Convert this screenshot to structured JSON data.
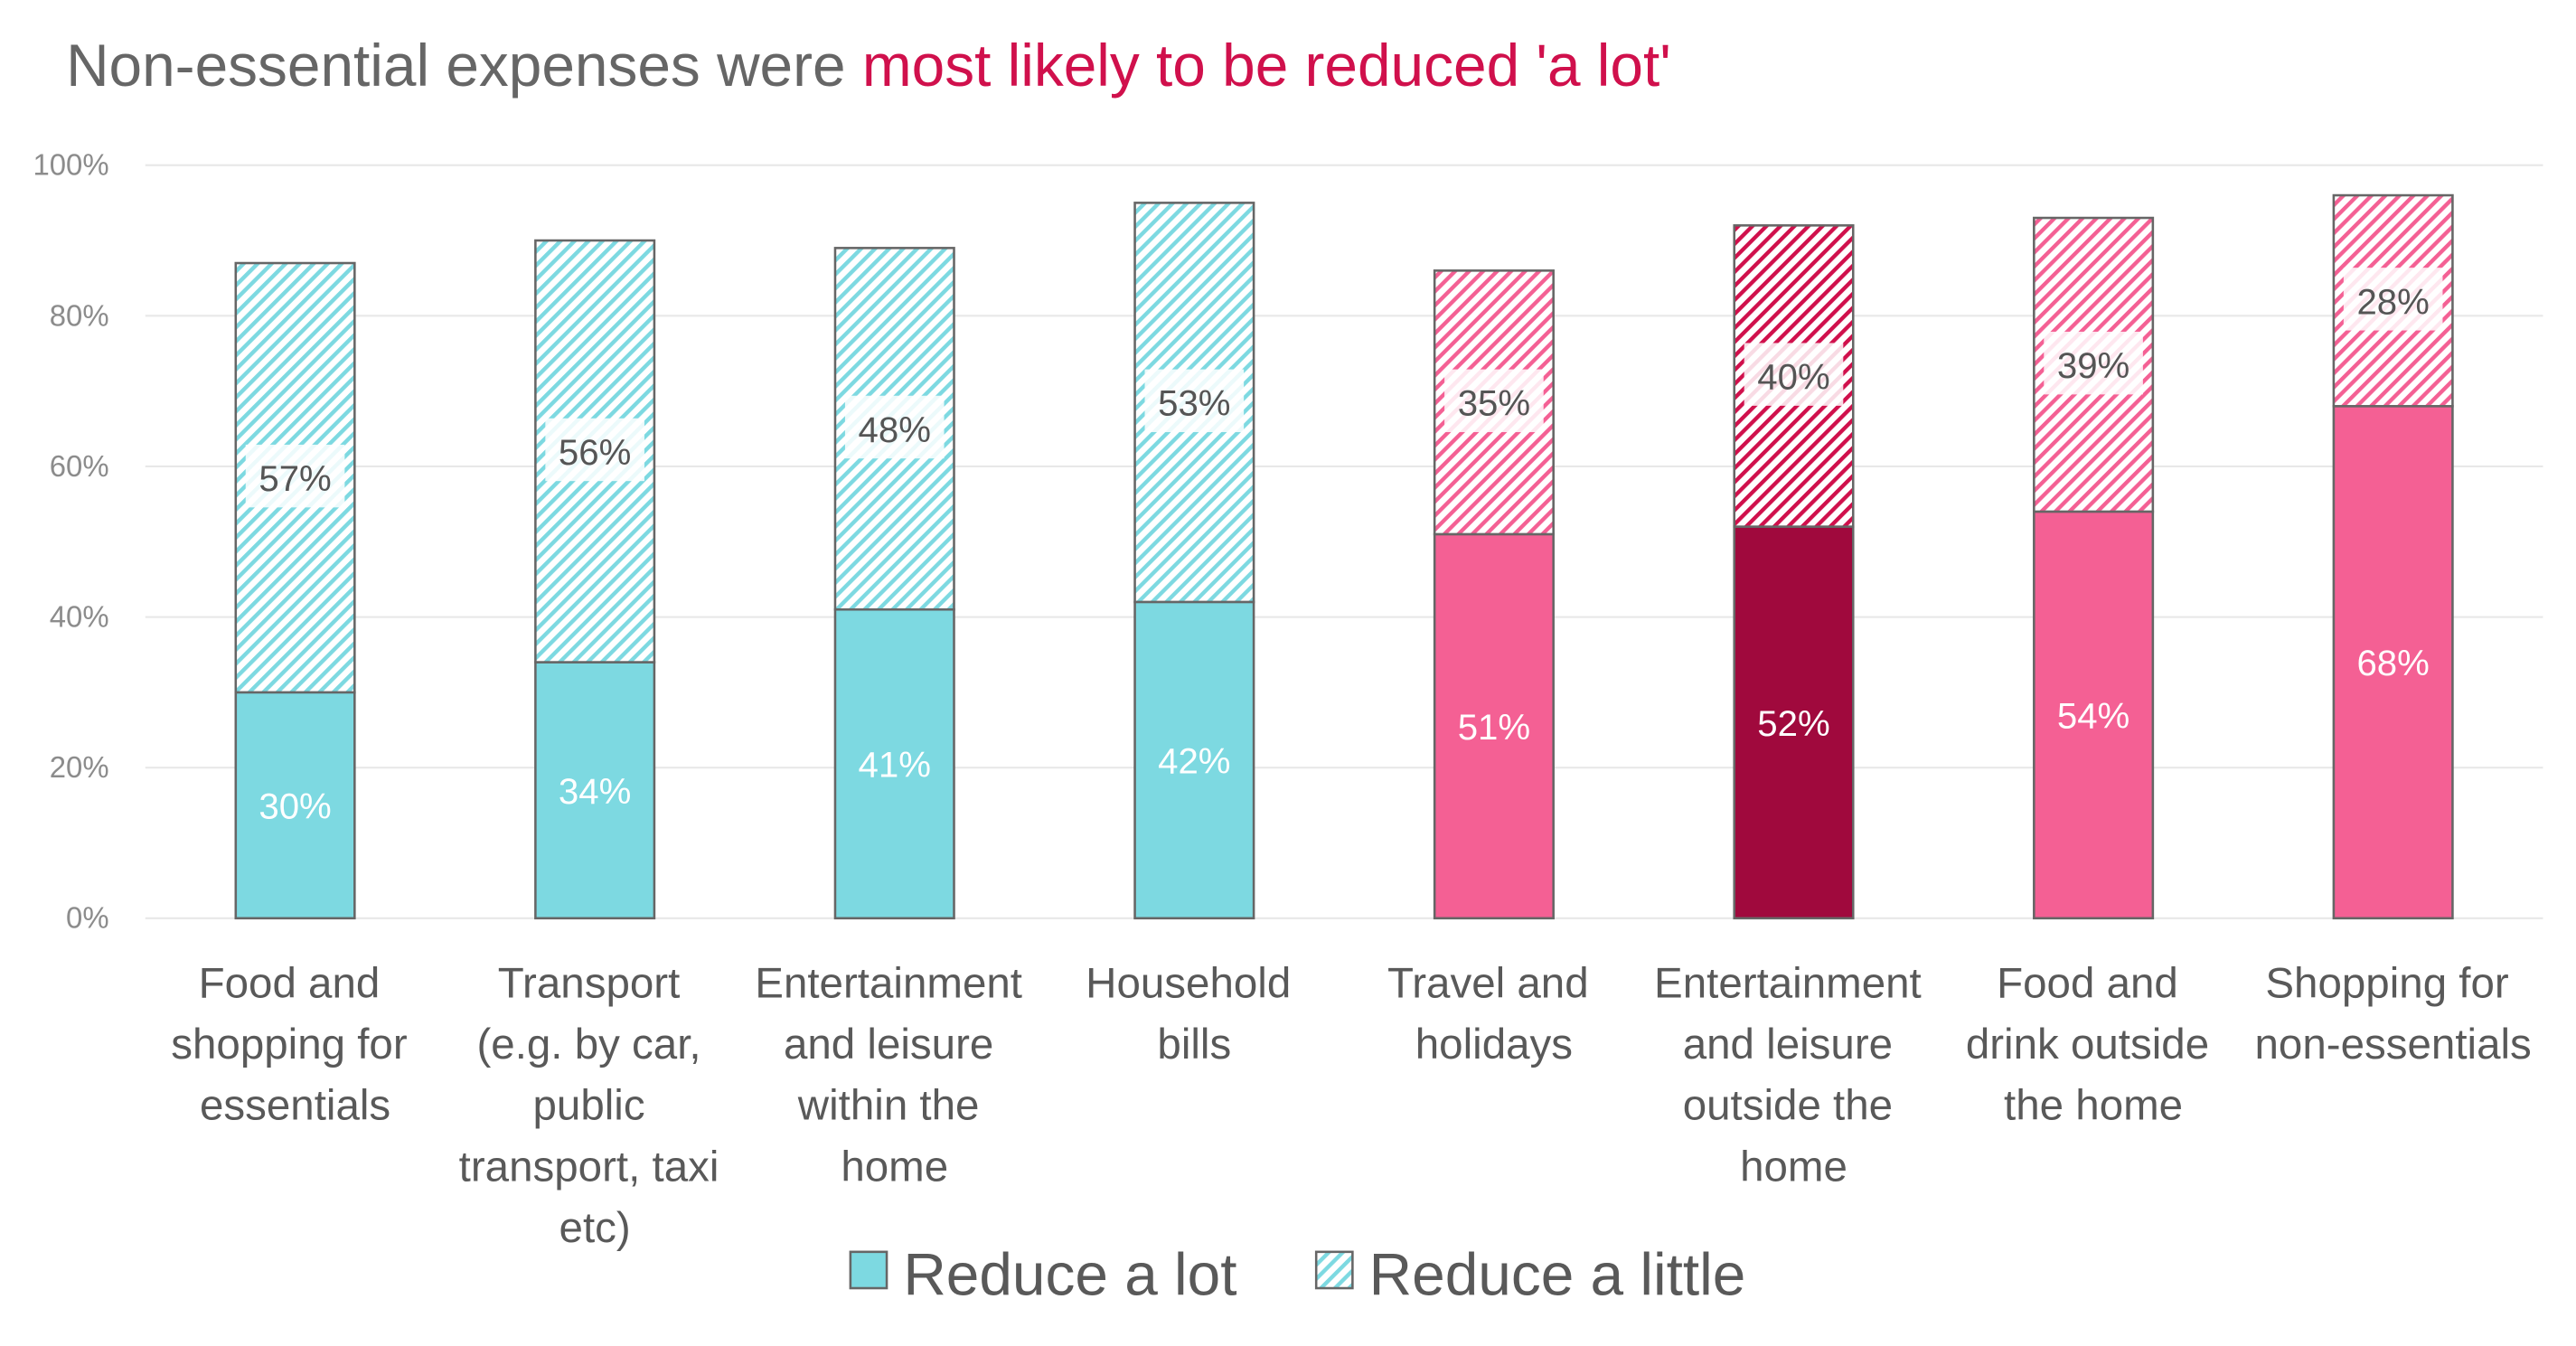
{
  "chart_data": {
    "type": "stacked_bar",
    "title": [
      "Non-essential expenses were",
      "most likely to be reduced 'a lot'"
    ],
    "title_colors": [
      "#666666",
      "#d0104c"
    ],
    "categories": [
      "Food and shopping for essentials",
      "Transport (e.g. by car, public transport, taxi etc)",
      "Entertainment and leisure within the home",
      "Household bills",
      "Travel and holidays",
      "Entertainment and leisure outside the home",
      "Food and drink outside the home",
      "Shopping for non-essentials"
    ],
    "series": [
      {
        "name": "Reduce a lot",
        "pattern": "solid",
        "colors": [
          "#7dd9e1",
          "#7dd9e1",
          "#7dd9e1",
          "#7dd9e1",
          "#f46094",
          "#a0093d",
          "#f46094",
          "#f46094"
        ],
        "values": [
          30,
          34,
          41,
          42,
          51,
          52,
          54,
          68
        ],
        "value_labels": [
          "30%",
          "34%",
          "41%",
          "42%",
          "51%",
          "52%",
          "54%",
          "68%"
        ]
      },
      {
        "name": "Reduce a little",
        "pattern": "hatch",
        "colors": [
          "#7dd9e1",
          "#7dd9e1",
          "#7dd9e1",
          "#7dd9e1",
          "#f46094",
          "#d0104c",
          "#f46094",
          "#f46094"
        ],
        "values": [
          57,
          56,
          48,
          53,
          35,
          40,
          39,
          28
        ],
        "value_labels": [
          "57%",
          "56%",
          "48%",
          "53%",
          "35%",
          "40%",
          "39%",
          "28%"
        ]
      }
    ],
    "ylim": [
      0,
      100
    ],
    "yticks": [
      {
        "value": 0,
        "label": "0%"
      },
      {
        "value": 20,
        "label": "20%"
      },
      {
        "value": 40,
        "label": "40%"
      },
      {
        "value": 60,
        "label": "60%"
      },
      {
        "value": 80,
        "label": "80%"
      },
      {
        "value": 100,
        "label": "100%"
      }
    ],
    "grid": true
  }
}
